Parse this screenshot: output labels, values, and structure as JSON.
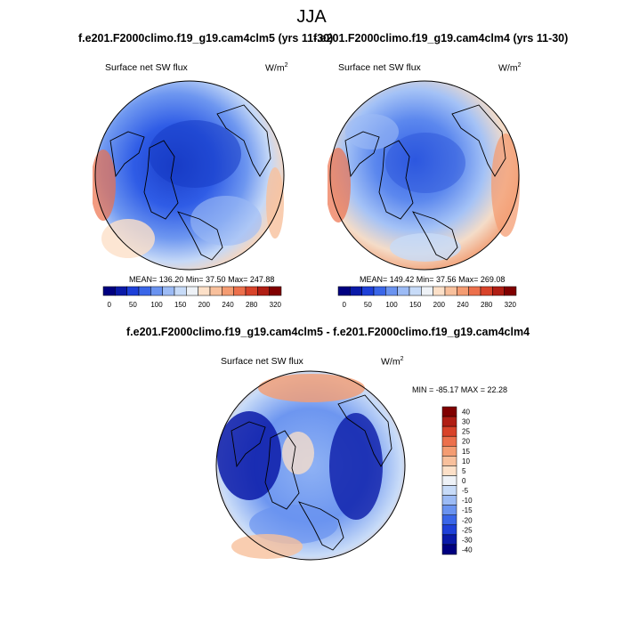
{
  "title": "JJA",
  "panels": [
    {
      "case": "f.e201.F2000climo.f19_g19.cam4clm5 (yrs 11-30)",
      "variable": "Surface net SW flux",
      "units": "W/m",
      "units_exp": "2",
      "stats": "MEAN= 136.20  Min=  37.50  Max= 247.88"
    },
    {
      "case": "f.e201.F2000climo.f19_g19.cam4clm4 (yrs 11-30)",
      "variable": "Surface net SW flux",
      "units": "W/m",
      "units_exp": "2",
      "stats": "MEAN= 149.42  Min=  37.56  Max= 269.08"
    }
  ],
  "diff": {
    "title": "f.e201.F2000climo.f19_g19.cam4clm5 - f.e201.F2000climo.f19_g19.cam4clm4",
    "variable": "Surface net SW flux",
    "units": "W/m",
    "units_exp": "2",
    "stats": "MIN = -85.17 MAX =  22.28"
  },
  "chart_data": [
    {
      "type": "heatmap",
      "projection": "north-polar-stereographic",
      "title": "f.e201.F2000climo.f19_g19.cam4clm5 (yrs 11-30)",
      "variable": "Surface net SW flux",
      "units": "W/m2",
      "mean": 136.2,
      "min": 37.5,
      "max": 247.88,
      "colorbar_levels": [
        0,
        50,
        100,
        150,
        200,
        240,
        280,
        320
      ],
      "colorbar_colors": [
        "#000080",
        "#0a1aa8",
        "#1e40d8",
        "#3a66e8",
        "#6a93f0",
        "#9cbbf5",
        "#c7dbf8",
        "#eef2f7",
        "#fce0c8",
        "#f8c09c",
        "#f49c72",
        "#ec704c",
        "#d8432a",
        "#b01e14",
        "#800000"
      ]
    },
    {
      "type": "heatmap",
      "projection": "north-polar-stereographic",
      "title": "f.e201.F2000climo.f19_g19.cam4clm4 (yrs 11-30)",
      "variable": "Surface net SW flux",
      "units": "W/m2",
      "mean": 149.42,
      "min": 37.56,
      "max": 269.08,
      "colorbar_levels": [
        0,
        50,
        100,
        150,
        200,
        240,
        280,
        320
      ],
      "colorbar_colors": [
        "#000080",
        "#0a1aa8",
        "#1e40d8",
        "#3a66e8",
        "#6a93f0",
        "#9cbbf5",
        "#c7dbf8",
        "#eef2f7",
        "#fce0c8",
        "#f8c09c",
        "#f49c72",
        "#ec704c",
        "#d8432a",
        "#b01e14",
        "#800000"
      ]
    },
    {
      "type": "heatmap",
      "projection": "north-polar-stereographic",
      "title": "f.e201.F2000climo.f19_g19.cam4clm5 - f.e201.F2000climo.f19_g19.cam4clm4",
      "variable": "Surface net SW flux",
      "units": "W/m2",
      "min": -85.17,
      "max": 22.28,
      "colorbar_levels": [
        40,
        30,
        25,
        20,
        15,
        10,
        5,
        0,
        -5,
        -10,
        -15,
        -20,
        -25,
        -30,
        -40
      ],
      "colorbar_colors": [
        "#800000",
        "#b01e14",
        "#d8432a",
        "#ec704c",
        "#f49c72",
        "#f8c09c",
        "#fce0c8",
        "#eef2f7",
        "#c7dbf8",
        "#9cbbf5",
        "#6a93f0",
        "#3a66e8",
        "#1e40d8",
        "#0a1aa8",
        "#000080"
      ]
    }
  ]
}
